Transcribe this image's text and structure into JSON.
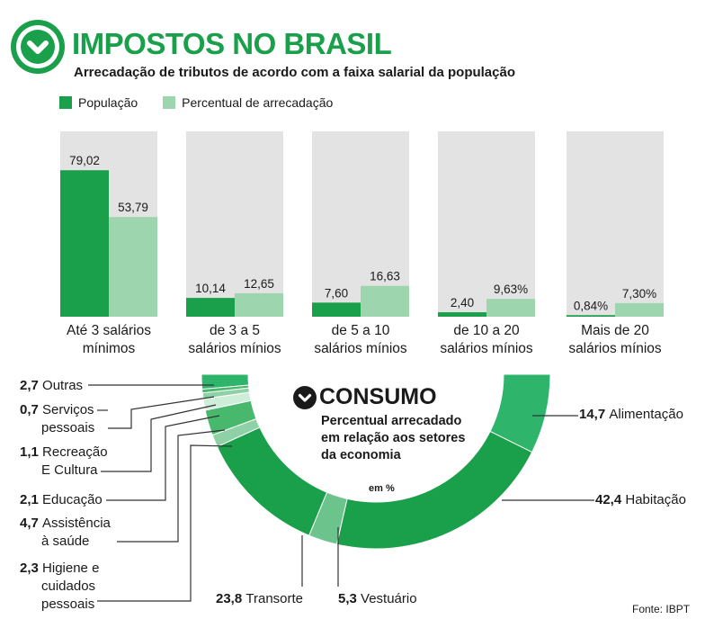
{
  "header": {
    "title": "IMPOSTOS NO BRASIL",
    "subtitle": "Arrecadação de tributos de acordo com a faixa salarial da população",
    "icon": "chevron-down-circle-icon"
  },
  "legend": [
    {
      "label": "População",
      "color": "#1aa04a"
    },
    {
      "label": "Percentual de arrecadação",
      "color": "#9dd6ae"
    }
  ],
  "chart_data": [
    {
      "type": "bar",
      "categories": [
        [
          "Até 3 salários",
          "mínimos"
        ],
        [
          "de 3 a 5",
          "salários mínios"
        ],
        [
          "de 5 a 10",
          "salários mínios"
        ],
        [
          "de 10 a 20",
          "salários mínios"
        ],
        [
          "Mais de 20",
          "salários mínios"
        ]
      ],
      "series": [
        {
          "name": "População",
          "values": [
            79.02,
            10.14,
            7.6,
            2.4,
            0.84
          ],
          "labels": [
            "79,02",
            "10,14",
            "7,60",
            "2,40",
            "0,84%"
          ],
          "color": "#1aa04a"
        },
        {
          "name": "Percentual de arrecadação",
          "values": [
            53.79,
            12.65,
            16.63,
            9.63,
            7.3
          ],
          "labels": [
            "53,79",
            "12,65",
            "16,63",
            "9,63%",
            "7,30%"
          ],
          "color": "#9dd6ae"
        }
      ],
      "ylim": [
        0,
        100
      ],
      "background_color": "#e3e3e3"
    },
    {
      "type": "pie",
      "title": "CONSUMO",
      "subtitle": "Percentual arrecadado em relação aos setores da economia",
      "unit": "em %",
      "categories": [
        "Alimentação",
        "Habitação",
        "Vestuário",
        "Transorte",
        "Higiene e cuidados pessoais",
        "Assistência à saúde",
        "Educação",
        "Recreação E Cultura",
        "Serviços pessoais",
        "Outras"
      ],
      "values": [
        14.7,
        42.4,
        5.3,
        23.8,
        2.3,
        4.7,
        2.1,
        1.1,
        0.7,
        2.7
      ],
      "labels": [
        "14,7",
        "42,4",
        "5,3",
        "23,8",
        "2,3",
        "4,7",
        "2,1",
        "1,1",
        "0,7",
        "2,7"
      ],
      "label_lines": [
        [
          "Alimentação"
        ],
        [
          "Habitação"
        ],
        [
          "Vestuário"
        ],
        [
          "Transorte"
        ],
        [
          "Higiene e",
          "cuidados",
          "pessoais"
        ],
        [
          "Assistência",
          "à saúde"
        ],
        [
          "Educação"
        ],
        [
          "Recreação",
          "E Cultura"
        ],
        [
          "Serviços",
          "pessoais"
        ],
        [
          "Outras"
        ]
      ],
      "colors": [
        "#2fb46c",
        "#1aa04a",
        "#6cc48c",
        "#1aa04a",
        "#8fd1a6",
        "#47b86c",
        "#ceeeda",
        "#8fd1a6",
        "#47b86c",
        "#2fb46c"
      ],
      "icon": "chevron-down-circle-icon"
    }
  ],
  "source": "Fonte: IBPT"
}
